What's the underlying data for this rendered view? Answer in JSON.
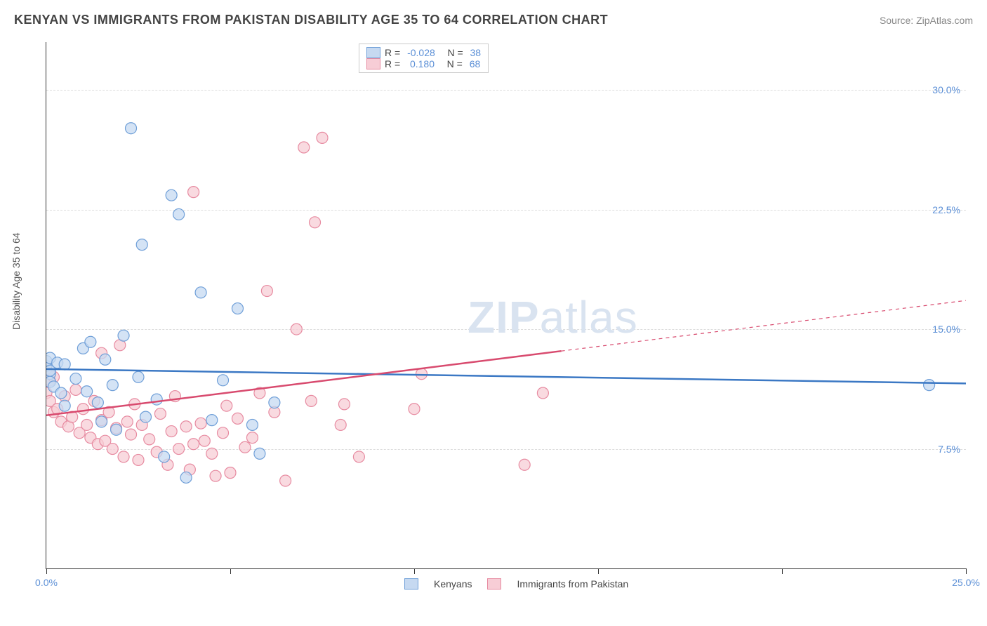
{
  "title": "KENYAN VS IMMIGRANTS FROM PAKISTAN DISABILITY AGE 35 TO 64 CORRELATION CHART",
  "source": "Source: ZipAtlas.com",
  "watermark_a": "ZIP",
  "watermark_b": "atlas",
  "y_axis_label": "Disability Age 35 to 64",
  "chart": {
    "type": "scatter",
    "background_color": "#ffffff",
    "grid_color": "#dddddd",
    "axis_color": "#333333",
    "tick_label_color": "#5b8fd6",
    "xlim": [
      0,
      25
    ],
    "ylim": [
      0,
      33
    ],
    "y_ticks": [
      7.5,
      15.0,
      22.5,
      30.0
    ],
    "y_tick_labels": [
      "7.5%",
      "15.0%",
      "22.5%",
      "30.0%"
    ],
    "x_ticks": [
      0,
      5,
      10,
      15,
      20,
      25
    ],
    "x_tick_labels_shown": {
      "0": "0.0%",
      "25": "25.0%"
    },
    "series": [
      {
        "name": "Kenyans",
        "color_fill": "#c6d9f1",
        "color_stroke": "#6f9fd8",
        "marker_radius": 8,
        "marker_opacity": 0.75,
        "R": "-0.028",
        "N": "38",
        "trend": {
          "x1": 0,
          "y1": 12.5,
          "x2": 25,
          "y2": 11.6,
          "color": "#3b78c4",
          "width": 2.5,
          "solid_until_x": 25
        },
        "points": [
          [
            0.0,
            12.7
          ],
          [
            0.0,
            13.0
          ],
          [
            0.1,
            12.2
          ],
          [
            0.1,
            11.7
          ],
          [
            0.1,
            13.2
          ],
          [
            0.1,
            12.4
          ],
          [
            0.2,
            11.4
          ],
          [
            0.3,
            12.9
          ],
          [
            0.4,
            11.0
          ],
          [
            0.5,
            10.2
          ],
          [
            0.5,
            12.8
          ],
          [
            0.8,
            11.9
          ],
          [
            1.0,
            13.8
          ],
          [
            1.1,
            11.1
          ],
          [
            1.2,
            14.2
          ],
          [
            1.4,
            10.4
          ],
          [
            1.5,
            9.2
          ],
          [
            1.6,
            13.1
          ],
          [
            1.8,
            11.5
          ],
          [
            1.9,
            8.7
          ],
          [
            2.1,
            14.6
          ],
          [
            2.3,
            27.6
          ],
          [
            2.5,
            12.0
          ],
          [
            2.6,
            20.3
          ],
          [
            2.7,
            9.5
          ],
          [
            3.0,
            10.6
          ],
          [
            3.2,
            7.0
          ],
          [
            3.4,
            23.4
          ],
          [
            3.6,
            22.2
          ],
          [
            3.8,
            5.7
          ],
          [
            4.2,
            17.3
          ],
          [
            4.5,
            9.3
          ],
          [
            4.8,
            11.8
          ],
          [
            5.2,
            16.3
          ],
          [
            5.6,
            9.0
          ],
          [
            5.8,
            7.2
          ],
          [
            6.2,
            10.4
          ],
          [
            24.0,
            11.5
          ]
        ]
      },
      {
        "name": "Immigrants from Pakistan",
        "color_fill": "#f7cdd6",
        "color_stroke": "#e78ba1",
        "marker_radius": 8,
        "marker_opacity": 0.75,
        "R": "0.180",
        "N": "68",
        "trend": {
          "x1": 0,
          "y1": 9.6,
          "x2": 25,
          "y2": 16.8,
          "color": "#d84a6e",
          "width": 2.5,
          "solid_until_x": 14
        },
        "points": [
          [
            0.0,
            12.5
          ],
          [
            0.0,
            11.0
          ],
          [
            0.1,
            10.5
          ],
          [
            0.1,
            11.8
          ],
          [
            0.2,
            9.8
          ],
          [
            0.2,
            12.0
          ],
          [
            0.3,
            10.0
          ],
          [
            0.4,
            9.2
          ],
          [
            0.5,
            10.8
          ],
          [
            0.6,
            8.9
          ],
          [
            0.7,
            9.5
          ],
          [
            0.8,
            11.2
          ],
          [
            0.9,
            8.5
          ],
          [
            1.0,
            10.0
          ],
          [
            1.1,
            9.0
          ],
          [
            1.2,
            8.2
          ],
          [
            1.3,
            10.5
          ],
          [
            1.4,
            7.8
          ],
          [
            1.5,
            9.3
          ],
          [
            1.5,
            13.5
          ],
          [
            1.6,
            8.0
          ],
          [
            1.7,
            9.8
          ],
          [
            1.8,
            7.5
          ],
          [
            1.9,
            8.8
          ],
          [
            2.0,
            14.0
          ],
          [
            2.1,
            7.0
          ],
          [
            2.2,
            9.2
          ],
          [
            2.3,
            8.4
          ],
          [
            2.4,
            10.3
          ],
          [
            2.5,
            6.8
          ],
          [
            2.6,
            9.0
          ],
          [
            2.8,
            8.1
          ],
          [
            3.0,
            7.3
          ],
          [
            3.1,
            9.7
          ],
          [
            3.3,
            6.5
          ],
          [
            3.4,
            8.6
          ],
          [
            3.5,
            10.8
          ],
          [
            3.6,
            7.5
          ],
          [
            3.8,
            8.9
          ],
          [
            3.9,
            6.2
          ],
          [
            4.0,
            7.8
          ],
          [
            4.0,
            23.6
          ],
          [
            4.2,
            9.1
          ],
          [
            4.3,
            8.0
          ],
          [
            4.5,
            7.2
          ],
          [
            4.6,
            5.8
          ],
          [
            4.8,
            8.5
          ],
          [
            4.9,
            10.2
          ],
          [
            5.0,
            6.0
          ],
          [
            5.2,
            9.4
          ],
          [
            5.4,
            7.6
          ],
          [
            5.6,
            8.2
          ],
          [
            5.8,
            11.0
          ],
          [
            6.0,
            17.4
          ],
          [
            6.2,
            9.8
          ],
          [
            6.5,
            5.5
          ],
          [
            6.8,
            15.0
          ],
          [
            7.0,
            26.4
          ],
          [
            7.2,
            10.5
          ],
          [
            7.3,
            21.7
          ],
          [
            7.5,
            27.0
          ],
          [
            8.0,
            9.0
          ],
          [
            8.1,
            10.3
          ],
          [
            8.5,
            7.0
          ],
          [
            10.0,
            10.0
          ],
          [
            10.2,
            12.2
          ],
          [
            13.0,
            6.5
          ],
          [
            13.5,
            11.0
          ]
        ]
      }
    ],
    "legend_top_position": "top-center",
    "legend_bottom_labels": [
      "Kenyans",
      "Immigrants from Pakistan"
    ]
  }
}
